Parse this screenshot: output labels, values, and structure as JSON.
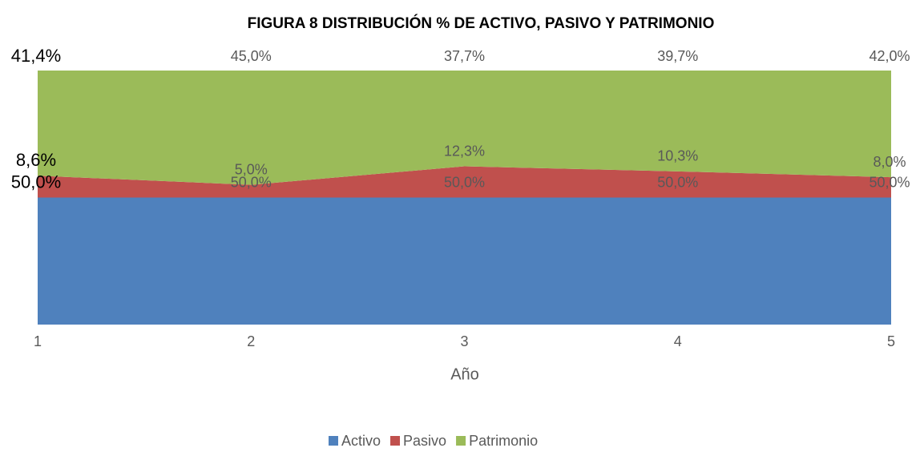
{
  "chart_data": {
    "type": "stacked_area",
    "title": "FIGURA 8 DISTRIBUCIÓN % DE ACTIVO, PASIVO Y PATRIMONIO",
    "x_label": "Año",
    "categories": [
      "1",
      "2",
      "3",
      "4",
      "5"
    ],
    "ylim": [
      0,
      100
    ],
    "legend": "bottom",
    "series": [
      {
        "name": "Activo",
        "color": "#4f81bd",
        "values": [
          50.0,
          50.0,
          50.0,
          50.0,
          50.0
        ],
        "value_labels": [
          "50,0%",
          "50,0%",
          "50,0%",
          "50,0%",
          "50,0%"
        ]
      },
      {
        "name": "Pasivo",
        "color": "#c0504d",
        "values": [
          8.6,
          5.0,
          12.3,
          10.3,
          8.0
        ],
        "value_labels": [
          "8,6%",
          "5,0%",
          "12,3%",
          "10,3%",
          "8,0%"
        ]
      },
      {
        "name": "Patrimonio",
        "color": "#9bbb59",
        "values": [
          41.4,
          45.0,
          37.7,
          39.7,
          42.0
        ],
        "value_labels": [
          "41,4%",
          "45,0%",
          "37,7%",
          "39,7%",
          "42,0%"
        ]
      }
    ]
  }
}
